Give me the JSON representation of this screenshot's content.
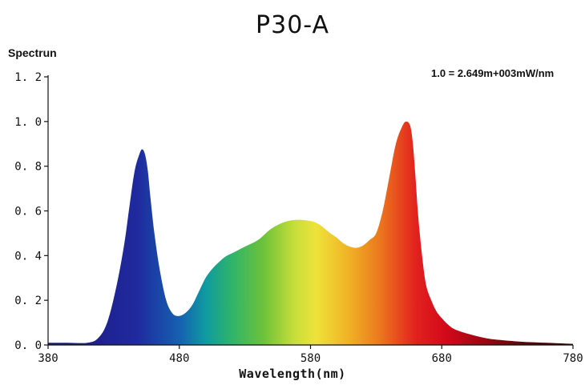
{
  "chart_data": {
    "type": "area",
    "title": "P30-A",
    "ylabel": "Spectrun",
    "xlabel": "Wavelength(nm)",
    "annotation": "1.0 = 2.649m+003mW/nm",
    "xlim": [
      380,
      780
    ],
    "ylim": [
      0,
      1.2
    ],
    "x_ticks": [
      380,
      480,
      580,
      680,
      780
    ],
    "x_tick_labels": [
      "380",
      "480",
      "580",
      "680",
      "780"
    ],
    "y_ticks": [
      0,
      0.2,
      0.4,
      0.6,
      0.8,
      1.0,
      1.2
    ],
    "y_tick_labels": [
      "0. 0",
      "0. 2",
      "0. 4",
      "0. 6",
      "0. 8",
      "1. 0",
      "1. 2"
    ],
    "grid": false,
    "fill": "visible-spectrum gradient",
    "series": [
      {
        "x": [
          380,
          395,
          410,
          418,
          425,
          432,
          438,
          442,
          446,
          450,
          452,
          454,
          456,
          458,
          461,
          465,
          470,
          475,
          480,
          485,
          490,
          495,
          500,
          505,
          510,
          515,
          520,
          525,
          530,
          540,
          550,
          560,
          570,
          580,
          585,
          590,
          595,
          600,
          605,
          610,
          615,
          620,
          625,
          630,
          635,
          640,
          645,
          650,
          653,
          656,
          658,
          660,
          662,
          665,
          668,
          672,
          676,
          680,
          685,
          690,
          700,
          710,
          720,
          740,
          760,
          780
        ],
        "y": [
          0.01,
          0.01,
          0.01,
          0.03,
          0.1,
          0.26,
          0.45,
          0.62,
          0.78,
          0.86,
          0.875,
          0.85,
          0.78,
          0.66,
          0.5,
          0.34,
          0.2,
          0.14,
          0.13,
          0.145,
          0.18,
          0.24,
          0.3,
          0.34,
          0.37,
          0.395,
          0.41,
          0.425,
          0.44,
          0.47,
          0.52,
          0.55,
          0.56,
          0.555,
          0.545,
          0.525,
          0.5,
          0.48,
          0.455,
          0.44,
          0.435,
          0.445,
          0.47,
          0.5,
          0.6,
          0.75,
          0.9,
          0.98,
          1.0,
          0.98,
          0.9,
          0.75,
          0.58,
          0.4,
          0.27,
          0.2,
          0.15,
          0.12,
          0.09,
          0.07,
          0.05,
          0.035,
          0.025,
          0.015,
          0.01,
          0.005
        ]
      }
    ]
  }
}
